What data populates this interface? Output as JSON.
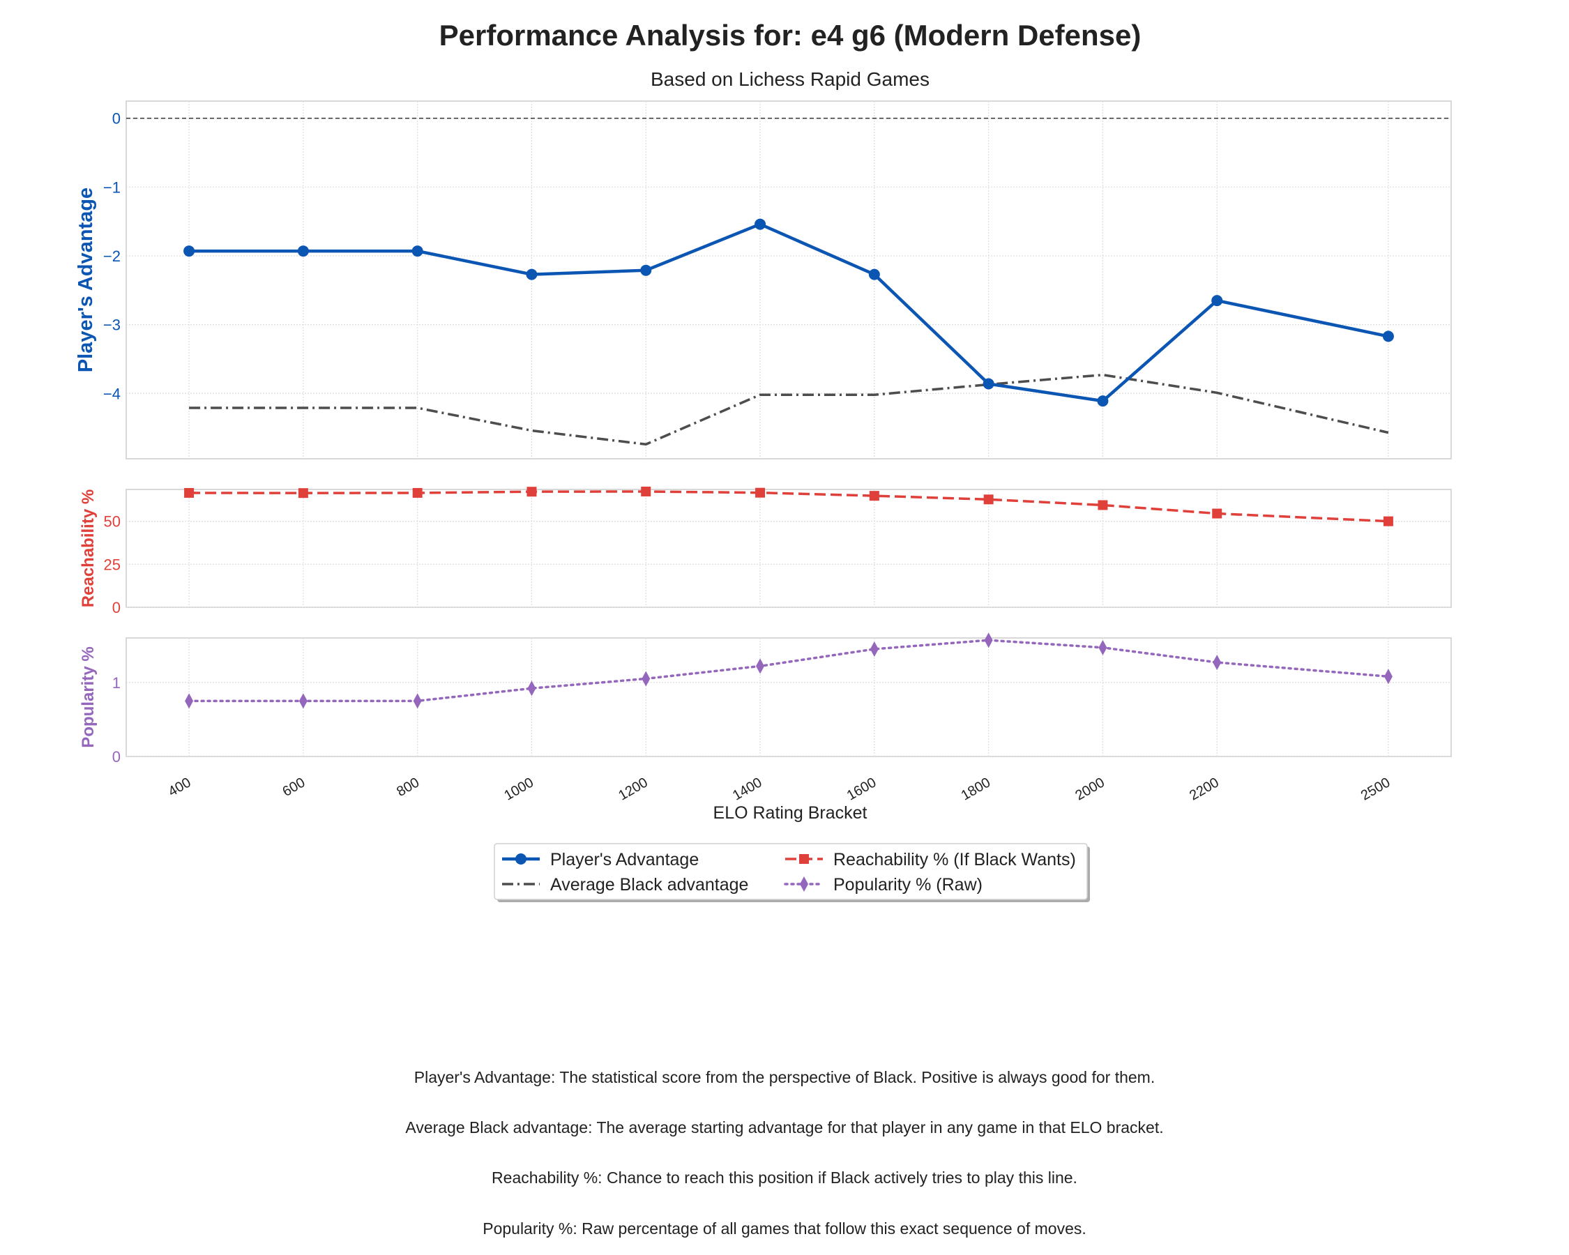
{
  "chart_data": {
    "type": "line",
    "title": "Performance Analysis for: e4 g6 (Modern Defense)",
    "subtitle": "Based on Lichess Rapid Games",
    "xlabel": "ELO Rating Bracket",
    "x": [
      400,
      600,
      800,
      1000,
      1200,
      1400,
      1600,
      1800,
      2000,
      2200,
      2500
    ],
    "x_tick_labels": [
      "400",
      "600",
      "800",
      "1000",
      "1200",
      "1400",
      "1600",
      "1800",
      "2000",
      "2200",
      "2500"
    ],
    "xlim": [
      290,
      2610
    ],
    "grid": true,
    "legend_placement": "bottom-center",
    "panels": [
      {
        "id": "advantage",
        "ylabel": "Player's Advantage",
        "ylim": [
          -4.95,
          0.25
        ],
        "yticks": [
          0,
          -1,
          -2,
          -3,
          -4
        ],
        "ytick_labels": [
          "0",
          "−1",
          "−2",
          "−3",
          "−4"
        ],
        "reference_line": 0,
        "color": "#0b55b3",
        "series": [
          {
            "name": "Player's Advantage",
            "color": "#0b55b3",
            "dash": "solid",
            "marker": "circle",
            "values": [
              -1.93,
              -1.93,
              -1.93,
              -2.27,
              -2.21,
              -1.54,
              -2.27,
              -3.86,
              -4.11,
              -2.65,
              -3.17
            ]
          },
          {
            "name": "Average Black advantage",
            "color": "#4d4d4d",
            "dash": "dashdot",
            "marker": "none",
            "values": [
              -4.21,
              -4.21,
              -4.21,
              -4.54,
              -4.74,
              -4.02,
              -4.02,
              -3.87,
              -3.73,
              -3.99,
              -4.57
            ]
          }
        ]
      },
      {
        "id": "reachability",
        "ylabel": "Reachability %",
        "ylim": [
          0,
          68.5
        ],
        "yticks": [
          0,
          25,
          50
        ],
        "ytick_labels": [
          "0",
          "25",
          "50"
        ],
        "color": "#e0403a",
        "series": [
          {
            "name": "Reachability % (If Black Wants)",
            "color": "#e0403a",
            "dash": "dashed",
            "marker": "square",
            "values": [
              66.5,
              66.4,
              66.5,
              67.2,
              67.3,
              66.6,
              64.8,
              62.7,
              59.4,
              54.5,
              50.0
            ]
          }
        ]
      },
      {
        "id": "popularity",
        "ylabel": "Popularity %",
        "ylim": [
          0,
          1.6
        ],
        "yticks": [
          0,
          1
        ],
        "ytick_labels": [
          "0",
          "1"
        ],
        "color": "#9467bd",
        "series": [
          {
            "name": "Popularity % (Raw)",
            "color": "#9467bd",
            "dash": "dotted",
            "marker": "diamond",
            "values": [
              0.75,
              0.75,
              0.75,
              0.92,
              1.05,
              1.22,
              1.45,
              1.57,
              1.47,
              1.27,
              1.08
            ]
          }
        ]
      }
    ]
  },
  "notes": [
    "Player's Advantage: The statistical score from the perspective of Black. Positive is always good for them.",
    "Average Black advantage: The average starting advantage for that player in any game in that ELO bracket.",
    "Reachability %: Chance to reach this position if Black actively tries to play this line.",
    "Popularity %: Raw percentage of all games that follow this exact sequence of moves."
  ]
}
